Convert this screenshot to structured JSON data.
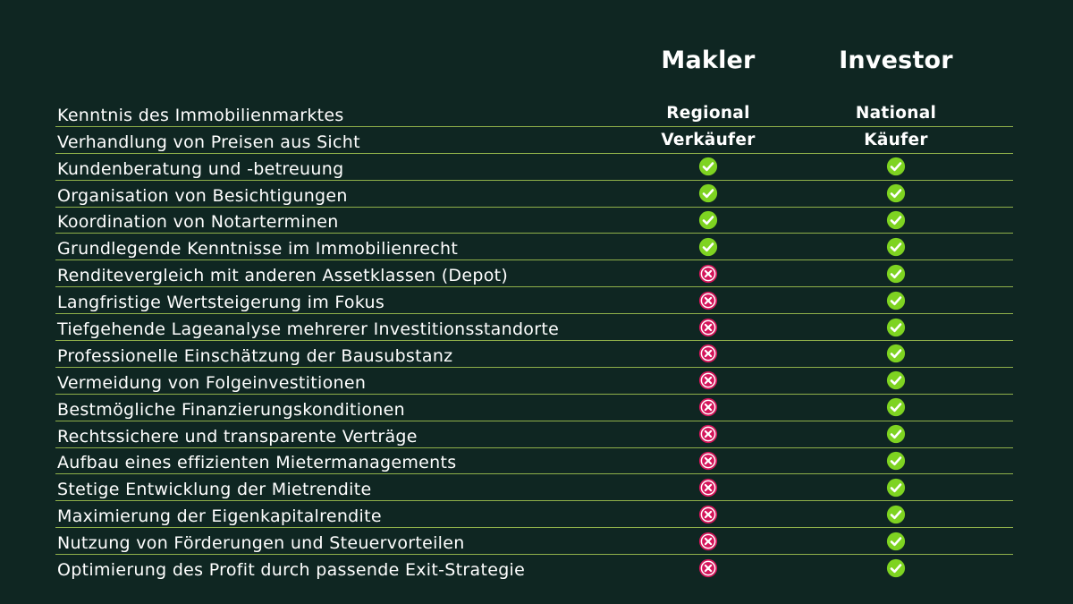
{
  "headers": {
    "makler": "Makler",
    "investor": "Investor"
  },
  "colors": {
    "background": "#0f2622",
    "divider": "#8fb04a",
    "yes": "#7ed321",
    "no": "#d4145a"
  },
  "rows": [
    {
      "label": "Kenntnis des Immobilienmarktes",
      "makler": {
        "type": "text",
        "value": "Regional"
      },
      "investor": {
        "type": "text",
        "value": "National"
      }
    },
    {
      "label": "Verhandlung von Preisen aus Sicht",
      "makler": {
        "type": "text",
        "value": "Verkäufer"
      },
      "investor": {
        "type": "text",
        "value": "Käufer"
      }
    },
    {
      "label": "Kundenberatung und -betreuung",
      "makler": {
        "type": "yes"
      },
      "investor": {
        "type": "yes"
      }
    },
    {
      "label": "Organisation von Besichtigungen",
      "makler": {
        "type": "yes"
      },
      "investor": {
        "type": "yes"
      }
    },
    {
      "label": "Koordination von Notarterminen",
      "makler": {
        "type": "yes"
      },
      "investor": {
        "type": "yes"
      }
    },
    {
      "label": "Grundlegende Kenntnisse im Immobilienrecht",
      "makler": {
        "type": "yes"
      },
      "investor": {
        "type": "yes"
      }
    },
    {
      "label": "Renditevergleich mit anderen Assetklassen (Depot)",
      "makler": {
        "type": "no"
      },
      "investor": {
        "type": "yes"
      }
    },
    {
      "label": "Langfristige Wertsteigerung im Fokus",
      "makler": {
        "type": "no"
      },
      "investor": {
        "type": "yes"
      }
    },
    {
      "label": "Tiefgehende Lageanalyse mehrerer Investitionsstandorte",
      "makler": {
        "type": "no"
      },
      "investor": {
        "type": "yes"
      }
    },
    {
      "label": "Professionelle Einschätzung der Bausubstanz",
      "makler": {
        "type": "no"
      },
      "investor": {
        "type": "yes"
      }
    },
    {
      "label": "Vermeidung von Folgeinvestitionen",
      "makler": {
        "type": "no"
      },
      "investor": {
        "type": "yes"
      }
    },
    {
      "label": "Bestmögliche Finanzierungskonditionen",
      "makler": {
        "type": "no"
      },
      "investor": {
        "type": "yes"
      }
    },
    {
      "label": "Rechtssichere und transparente Verträge",
      "makler": {
        "type": "no"
      },
      "investor": {
        "type": "yes"
      }
    },
    {
      "label": "Aufbau eines effizienten Mietermanagements",
      "makler": {
        "type": "no"
      },
      "investor": {
        "type": "yes"
      }
    },
    {
      "label": "Stetige Entwicklung der Mietrendite",
      "makler": {
        "type": "no"
      },
      "investor": {
        "type": "yes"
      }
    },
    {
      "label": "Maximierung der Eigenkapitalrendite",
      "makler": {
        "type": "no"
      },
      "investor": {
        "type": "yes"
      }
    },
    {
      "label": "Nutzung von Förderungen und Steuervorteilen",
      "makler": {
        "type": "no"
      },
      "investor": {
        "type": "yes"
      }
    },
    {
      "label": "Optimierung des Profit durch passende Exit-Strategie",
      "makler": {
        "type": "no"
      },
      "investor": {
        "type": "yes"
      }
    }
  ]
}
